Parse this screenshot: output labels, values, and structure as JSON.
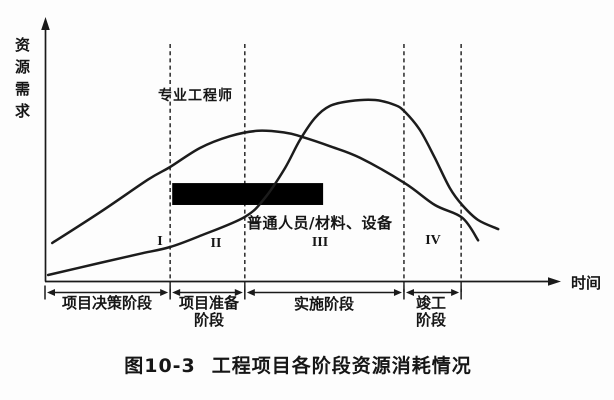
{
  "figure": {
    "caption_prefix": "图10-3",
    "caption_text": "工程项目各阶段资源消耗情况"
  },
  "axes": {
    "y_label": "资源需求",
    "x_label": "时间"
  },
  "annotations": {
    "curve_a_label": "专业工程师",
    "curve_b_label": "普通人员/材料、设备",
    "numerals": [
      "I",
      "II",
      "III",
      "IV"
    ]
  },
  "stages": [
    {
      "line1": "项目决策阶段",
      "line2": ""
    },
    {
      "line1": "项目准备",
      "line2": "阶段"
    },
    {
      "line1": "实施阶段",
      "line2": ""
    },
    {
      "line1": "竣工",
      "line2": "阶段"
    }
  ],
  "colors": {
    "ink": "#1a1a1a",
    "background": "#fdfdfd",
    "highlight_bar": "#000000"
  },
  "chart_data": {
    "type": "line",
    "title": "图10-3 工程项目各阶段资源消耗情况",
    "xlabel": "时间",
    "ylabel": "资源需求",
    "x_range": [
      0,
      100
    ],
    "y_range": [
      0,
      105
    ],
    "grid": false,
    "legend_position": "inline-annotations",
    "phase_numerals": [
      "I",
      "II",
      "III",
      "IV"
    ],
    "phase_dividers_x": [
      24.3,
      38.8,
      69.7,
      80.8
    ],
    "stage_spans_x": [
      [
        0,
        24.3
      ],
      [
        24.3,
        38.8
      ],
      [
        38.8,
        69.7
      ],
      [
        69.7,
        80.8
      ]
    ],
    "stage_names": [
      "项目决策阶段",
      "项目准备阶段",
      "实施阶段",
      "竣工阶段"
    ],
    "highlight_bar": {
      "x0": 24.7,
      "x1": 54.0,
      "y0": 42.0,
      "y1": 54.1
    },
    "series": [
      {
        "name": "专业工程师",
        "points": [
          [
            1.4,
            21
          ],
          [
            10.7,
            38
          ],
          [
            20,
            56
          ],
          [
            24.3,
            63
          ],
          [
            30.1,
            73.5
          ],
          [
            35.9,
            80
          ],
          [
            41.4,
            83
          ],
          [
            46.6,
            82
          ],
          [
            49.5,
            80
          ],
          [
            55.3,
            74.5
          ],
          [
            61.2,
            68
          ],
          [
            69.9,
            54
          ],
          [
            75.7,
            42
          ],
          [
            81,
            35
          ],
          [
            84.1,
            22.5
          ]
        ]
      },
      {
        "name": "普通人员/材料、设备",
        "points": [
          [
            0.6,
            3.3
          ],
          [
            10.7,
            10
          ],
          [
            18.4,
            15
          ],
          [
            24.3,
            18.8
          ],
          [
            30.1,
            24.9
          ],
          [
            38.8,
            35.4
          ],
          [
            42.7,
            45.9
          ],
          [
            46.6,
            62.4
          ],
          [
            49.5,
            77.9
          ],
          [
            52.4,
            90
          ],
          [
            55.3,
            96.7
          ],
          [
            59.2,
            99.4
          ],
          [
            64.1,
            100
          ],
          [
            68,
            97.2
          ],
          [
            69.9,
            93.4
          ],
          [
            72.8,
            83.4
          ],
          [
            75.7,
            68
          ],
          [
            78.6,
            51.4
          ],
          [
            81,
            42
          ],
          [
            84.1,
            33.7
          ],
          [
            88,
            28.7
          ]
        ]
      }
    ]
  }
}
